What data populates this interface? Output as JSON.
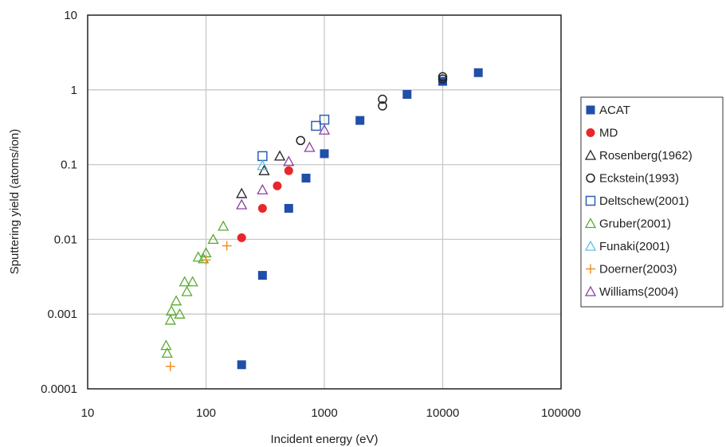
{
  "chart_data": {
    "type": "scatter",
    "title": "",
    "xlabel": "Incident energy (eV)",
    "ylabel": "Sputtering yield (atoms/ion)",
    "x_scale": "log",
    "y_scale": "log",
    "xlim": [
      10,
      100000
    ],
    "ylim": [
      0.0001,
      10
    ],
    "x_ticks": [
      "10",
      "100",
      "1000",
      "10000",
      "100000"
    ],
    "y_ticks": [
      "10",
      "1",
      "0.1",
      "0.01",
      "0.001",
      "0.0001"
    ],
    "grid": true,
    "legend_position": "right",
    "series": [
      {
        "name": "ACAT",
        "marker": "square-filled",
        "color": "#1f4fa8",
        "points": [
          [
            200,
            0.00021
          ],
          [
            300,
            0.0033
          ],
          [
            500,
            0.026
          ],
          [
            700,
            0.066
          ],
          [
            1000,
            0.14
          ],
          [
            2000,
            0.39
          ],
          [
            5000,
            0.87
          ],
          [
            10000,
            1.3
          ],
          [
            20000,
            1.7
          ]
        ]
      },
      {
        "name": "MD",
        "marker": "circle-filled",
        "color": "#e8262b",
        "points": [
          [
            200,
            0.0105
          ],
          [
            300,
            0.026
          ],
          [
            400,
            0.052
          ],
          [
            500,
            0.083
          ]
        ]
      },
      {
        "name": "Rosenberg(1962)",
        "marker": "triangle-open",
        "color": "#222222",
        "points": [
          [
            200,
            0.041
          ],
          [
            310,
            0.083
          ],
          [
            420,
            0.13
          ]
        ]
      },
      {
        "name": "Eckstein(1993)",
        "marker": "circle-open",
        "color": "#222222",
        "points": [
          [
            630,
            0.21
          ],
          [
            3100,
            0.75
          ],
          [
            3100,
            0.61
          ],
          [
            10000,
            1.5
          ],
          [
            10000,
            1.4
          ]
        ]
      },
      {
        "name": "Deltschew(2001)",
        "marker": "square-open",
        "color": "#2b5fb5",
        "points": [
          [
            300,
            0.13
          ],
          [
            850,
            0.33
          ],
          [
            1000,
            0.4
          ]
        ]
      },
      {
        "name": "Gruber(2001)",
        "marker": "triangle-open",
        "color": "#5aaa32",
        "points": [
          [
            46,
            0.00038
          ],
          [
            47,
            0.0003
          ],
          [
            50,
            0.00083
          ],
          [
            51,
            0.0011
          ],
          [
            56,
            0.0015
          ],
          [
            60,
            0.001
          ],
          [
            66,
            0.0027
          ],
          [
            69,
            0.002
          ],
          [
            77,
            0.0027
          ],
          [
            86,
            0.0058
          ],
          [
            95,
            0.0055
          ],
          [
            100,
            0.0066
          ],
          [
            115,
            0.01
          ],
          [
            140,
            0.015
          ]
        ]
      },
      {
        "name": "Funaki(2001)",
        "marker": "triangle-open",
        "color": "#5bc2e0",
        "points": [
          [
            300,
            0.097
          ]
        ]
      },
      {
        "name": "Doerner(2003)",
        "marker": "plus",
        "color": "#f0902a",
        "points": [
          [
            50,
            0.0002
          ],
          [
            100,
            0.0053
          ],
          [
            150,
            0.0082
          ]
        ]
      },
      {
        "name": "Williams(2004)",
        "marker": "triangle-open",
        "color": "#8a3fa0",
        "points": [
          [
            200,
            0.029
          ],
          [
            300,
            0.046
          ],
          [
            500,
            0.11
          ],
          [
            750,
            0.17
          ],
          [
            1000,
            0.29
          ]
        ]
      }
    ]
  }
}
